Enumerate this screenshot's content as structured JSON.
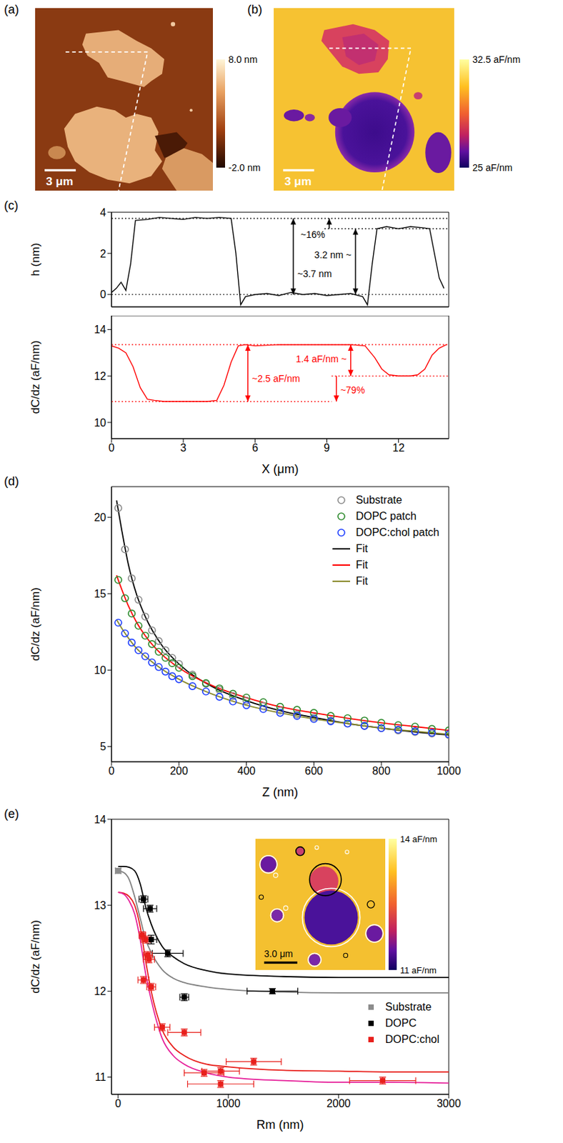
{
  "chart_data": [
    {
      "title": "(a)",
      "type": "image",
      "scale_bar": "3 μm",
      "colorbar": {
        "range": [
          -2.0,
          8.0
        ],
        "ticks": [
          {
            "value": 8.0,
            "label": "8.0 nm"
          },
          {
            "value": -2.0,
            "label": "-2.0 nm"
          }
        ]
      }
    },
    {
      "title": "(b)",
      "type": "image",
      "scale_bar": "3 μm",
      "colorbar": {
        "range": [
          25,
          32.5
        ],
        "ticks": [
          {
            "value": 32.5,
            "label": "32.5 aF/nm"
          },
          {
            "value": 25,
            "label": "25 aF/nm"
          }
        ]
      }
    },
    {
      "title": "(c)",
      "type": "line",
      "y_label": "h (nm)",
      "tick_labels": "y",
      "color": "#000000",
      "x": [
        0,
        0.2,
        0.4,
        0.6,
        0.8,
        1.0,
        1.5,
        2,
        2.5,
        3,
        3.5,
        4,
        4.5,
        5.0,
        5.2,
        5.4,
        5.6,
        6,
        6.5,
        7,
        7.5,
        8,
        8.5,
        9,
        9.5,
        10,
        10.5,
        10.7,
        10.9,
        11.1,
        11.5,
        12,
        12.5,
        13,
        13.3,
        13.5,
        13.7,
        13.9
      ],
      "values": [
        0.1,
        0.3,
        0.6,
        0.2,
        1.5,
        3.6,
        3.65,
        3.75,
        3.7,
        3.65,
        3.75,
        3.7,
        3.75,
        3.7,
        2.0,
        -0.5,
        -0.1,
        0,
        0.05,
        -0.05,
        0.1,
        0,
        0.05,
        -0.05,
        0,
        0.05,
        -0.1,
        -0.5,
        1.5,
        3.2,
        3.3,
        3.2,
        3.3,
        3.25,
        3.2,
        2.0,
        0.8,
        0.3
      ],
      "xlim": [
        0,
        14.1
      ],
      "xticks": [
        0,
        3,
        6,
        9,
        12
      ],
      "ylim": [
        -0.6,
        4
      ],
      "yticks": [
        0,
        2,
        4
      ],
      "reference_lines": [
        {
          "y": 3.7,
          "x": [
            0,
            14.1
          ]
        },
        {
          "y": 3.2,
          "x": [
            8.9,
            14.1
          ]
        },
        {
          "y": 0,
          "x": [
            0,
            14.1
          ]
        }
      ],
      "annotations": [
        {
          "text": "~3.7 nm",
          "x": 7.6,
          "from": 0,
          "to": 3.7,
          "marker": "double_arrow"
        },
        {
          "text": "~16%",
          "x": 9.1,
          "from": 3.2,
          "to": 3.7,
          "marker": "arrow"
        },
        {
          "text": "3.2 nm ~",
          "x": 10.2,
          "from": 0,
          "to": 3.2,
          "marker": "double_arrow"
        }
      ]
    },
    {
      "type": "line",
      "x_label": "X (μm)",
      "y_label": "dC/dz (aF/nm)",
      "color": "#ff0000",
      "x": [
        0,
        0.3,
        0.6,
        0.9,
        1.2,
        1.5,
        1.8,
        2.2,
        3,
        4,
        4.4,
        4.7,
        5.0,
        5.3,
        5.6,
        6,
        7,
        8,
        9,
        10,
        10.6,
        11,
        11.3,
        11.6,
        12,
        12.5,
        12.8,
        13.1,
        13.4,
        13.7,
        14
      ],
      "values": [
        13.3,
        13.2,
        13.0,
        12.4,
        11.5,
        11.0,
        10.95,
        10.9,
        10.9,
        10.9,
        10.95,
        11.6,
        12.6,
        13.3,
        13.35,
        13.3,
        13.35,
        13.35,
        13.35,
        13.35,
        13.3,
        12.8,
        12.3,
        12.05,
        12.0,
        12.0,
        12.05,
        12.3,
        12.9,
        13.2,
        13.35
      ],
      "xlim": [
        0,
        14.1
      ],
      "xticks": [
        0,
        3,
        6,
        9,
        12
      ],
      "ylim": [
        9.3,
        14.6
      ],
      "yticks": [
        10,
        12,
        14
      ],
      "reference_lines": [
        {
          "y": 13.35,
          "x": [
            0,
            14.1
          ]
        },
        {
          "y": 10.9,
          "x": [
            0,
            9.2
          ]
        },
        {
          "y": 12.0,
          "x": [
            9.2,
            14.1
          ]
        }
      ],
      "annotations": [
        {
          "text": "~2.5 aF/nm",
          "x": 5.7,
          "from": 10.9,
          "to": 13.35,
          "marker": "double_arrow"
        },
        {
          "text": "1.4 aF/nm ~",
          "x": 10.0,
          "from": 12.0,
          "to": 13.35,
          "marker": "double_arrow"
        },
        {
          "text": "~79%",
          "x": 9.4,
          "from": 12.0,
          "to": 10.9,
          "marker": "arrow"
        }
      ]
    },
    {
      "title": "(d)",
      "type": "scatter",
      "x_label": "Z (nm)",
      "y_label": "dC/dz (aF/nm)",
      "xlim": [
        0,
        1000
      ],
      "xticks": [
        0,
        200,
        400,
        600,
        800,
        1000
      ],
      "ylim": [
        4,
        22
      ],
      "yticks": [
        5,
        10,
        15,
        20
      ],
      "legend": "upper right",
      "series": [
        {
          "name": "Substrate",
          "type": "scatter",
          "marker": "open_circle",
          "color": "#8c8c8c",
          "x": [
            20,
            40,
            60,
            80,
            100,
            120,
            140,
            160,
            180,
            200,
            240,
            280,
            320,
            360,
            400,
            450,
            500,
            550,
            600,
            650,
            700,
            750,
            800,
            850,
            900,
            950,
            1000
          ],
          "values": [
            20.6,
            17.9,
            16.0,
            14.6,
            13.5,
            12.6,
            11.9,
            11.3,
            10.8,
            10.4,
            9.7,
            9.1,
            8.7,
            8.3,
            8.0,
            7.65,
            7.35,
            7.1,
            6.9,
            6.7,
            6.5,
            6.35,
            6.2,
            6.05,
            5.95,
            5.85,
            5.75
          ]
        },
        {
          "name": "DOPC patch",
          "type": "scatter",
          "marker": "open_circle",
          "color": "#2e8b2e",
          "x": [
            20,
            40,
            60,
            80,
            100,
            120,
            140,
            160,
            180,
            200,
            240,
            280,
            320,
            360,
            400,
            450,
            500,
            550,
            600,
            650,
            700,
            750,
            800,
            850,
            900,
            950,
            1000
          ],
          "values": [
            15.9,
            14.7,
            13.7,
            12.9,
            12.25,
            11.7,
            11.2,
            10.8,
            10.45,
            10.15,
            9.6,
            9.15,
            8.8,
            8.45,
            8.2,
            7.9,
            7.6,
            7.4,
            7.2,
            7.0,
            6.85,
            6.7,
            6.55,
            6.4,
            6.3,
            6.15,
            6.05
          ]
        },
        {
          "name": "DOPC:chol patch",
          "type": "scatter",
          "marker": "open_circle",
          "color": "#1f3fff",
          "x": [
            20,
            40,
            60,
            80,
            100,
            120,
            140,
            160,
            180,
            200,
            240,
            280,
            320,
            360,
            400,
            450,
            500,
            550,
            600,
            650,
            700,
            750,
            800,
            850,
            900,
            950,
            1000
          ],
          "values": [
            13.1,
            12.4,
            11.8,
            11.3,
            10.9,
            10.5,
            10.2,
            9.9,
            9.6,
            9.4,
            8.95,
            8.6,
            8.25,
            7.95,
            7.7,
            7.45,
            7.2,
            7.0,
            6.8,
            6.65,
            6.5,
            6.35,
            6.2,
            6.1,
            6.0,
            5.9,
            5.8
          ]
        },
        {
          "name": "Fit",
          "type": "line",
          "color": "#000000",
          "x": [
            15,
            30,
            50,
            75,
            100,
            150,
            200,
            300,
            400,
            500,
            600,
            700,
            800,
            900,
            1000
          ],
          "values": [
            21.1,
            19.2,
            16.9,
            14.9,
            13.5,
            11.6,
            10.4,
            8.9,
            8.0,
            7.35,
            6.9,
            6.5,
            6.2,
            5.95,
            5.75
          ]
        },
        {
          "name": "Fit",
          "type": "line",
          "color": "#ff0000",
          "x": [
            15,
            30,
            50,
            75,
            100,
            150,
            200,
            300,
            400,
            500,
            600,
            700,
            800,
            900,
            1000
          ],
          "values": [
            16.2,
            15.3,
            14.2,
            13.1,
            12.25,
            11.0,
            10.15,
            8.97,
            8.2,
            7.6,
            7.2,
            6.85,
            6.55,
            6.3,
            6.05
          ]
        },
        {
          "name": "Fit",
          "type": "line",
          "color": "#8b8b2e",
          "x": [
            15,
            30,
            50,
            75,
            100,
            150,
            200,
            300,
            400,
            500,
            600,
            700,
            800,
            900,
            1000
          ],
          "values": [
            13.3,
            12.75,
            12.1,
            11.4,
            10.9,
            10.05,
            9.4,
            8.42,
            7.7,
            7.2,
            6.8,
            6.5,
            6.2,
            6.0,
            5.8
          ]
        }
      ]
    },
    {
      "title": "(e)",
      "type": "scatter",
      "x_label": "Rm (nm)",
      "y_label": "dC/dz (aF/nm)",
      "xlim": [
        -60,
        3000
      ],
      "xticks": [
        0,
        1000,
        2000,
        3000
      ],
      "ylim": [
        10.8,
        14
      ],
      "yticks": [
        11,
        12,
        13,
        14
      ],
      "legend": "lower right",
      "series": [
        {
          "type": "line",
          "color": "#000000",
          "x": [
            0,
            50,
            100,
            150,
            200,
            250,
            300,
            400,
            500,
            600,
            800,
            1000,
            1500,
            2000,
            2500,
            3000
          ],
          "values": [
            13.45,
            13.45,
            13.44,
            13.4,
            13.25,
            12.98,
            12.78,
            12.52,
            12.4,
            12.32,
            12.24,
            12.2,
            12.17,
            12.16,
            12.16,
            12.16
          ]
        },
        {
          "type": "line",
          "color": "#808080",
          "x": [
            0,
            50,
            100,
            150,
            200,
            250,
            300,
            400,
            500,
            600,
            800,
            1000,
            1500,
            2000,
            2500,
            3000
          ],
          "values": [
            13.4,
            13.38,
            13.3,
            13.1,
            12.85,
            12.6,
            12.45,
            12.25,
            12.15,
            12.1,
            12.05,
            12.02,
            11.99,
            11.98,
            11.98,
            11.98
          ]
        },
        {
          "type": "line",
          "color": "#e8201c",
          "x": [
            0,
            50,
            100,
            150,
            200,
            250,
            300,
            400,
            500,
            600,
            800,
            1000,
            1500,
            2000,
            2500,
            3000
          ],
          "values": [
            13.15,
            13.14,
            13.1,
            13.0,
            12.75,
            12.35,
            12.0,
            11.55,
            11.35,
            11.25,
            11.15,
            11.12,
            11.08,
            11.07,
            11.06,
            11.06
          ]
        },
        {
          "type": "line",
          "color": "#e6209a",
          "x": [
            0,
            50,
            100,
            150,
            200,
            250,
            300,
            400,
            500,
            600,
            800,
            1000,
            1500,
            2000,
            2500,
            3000
          ],
          "values": [
            13.15,
            13.13,
            13.05,
            12.9,
            12.6,
            12.2,
            11.9,
            11.45,
            11.25,
            11.15,
            11.05,
            11.0,
            10.96,
            10.94,
            10.94,
            10.93
          ]
        },
        {
          "name": "Substrate",
          "type": "scatter",
          "marker": "square",
          "color": "#8c8c8c",
          "x": [
            0
          ],
          "values": [
            13.4
          ],
          "x_err": [
            25
          ],
          "y_err": [
            0.03
          ]
        },
        {
          "name": "DOPC",
          "type": "scatter",
          "marker": "square",
          "color": "#000000",
          "x": [
            230,
            290,
            300,
            450,
            600,
            1400
          ],
          "values": [
            13.07,
            12.96,
            12.6,
            12.44,
            11.93,
            12.0
          ],
          "x_err": [
            40,
            60,
            50,
            140,
            40,
            230
          ],
          "y_err": [
            0.04,
            0.04,
            0.05,
            0.04,
            0.04,
            0.03
          ]
        },
        {
          "name": "DOPC:chol",
          "type": "scatter",
          "marker": "square",
          "color": "#e8201c",
          "x": [
            220,
            250,
            270,
            280,
            230,
            300,
            400,
            600,
            780,
            930,
            930,
            1230,
            2400
          ],
          "values": [
            12.65,
            12.6,
            12.42,
            12.37,
            12.13,
            12.05,
            11.58,
            11.52,
            11.05,
            11.07,
            10.92,
            11.18,
            10.96
          ],
          "x_err": [
            30,
            40,
            40,
            50,
            50,
            40,
            70,
            150,
            180,
            170,
            300,
            250,
            300
          ],
          "y_err": [
            0.04,
            0.04,
            0.04,
            0.04,
            0.04,
            0.04,
            0.04,
            0.04,
            0.04,
            0.04,
            0.04,
            0.04,
            0.04
          ]
        }
      ],
      "inset": {
        "type": "image",
        "scale_bar": "3.0 μm",
        "colorbar": {
          "range": [
            11,
            14
          ],
          "ticks": [
            {
              "value": 14,
              "label": "14 aF/nm"
            },
            {
              "value": 11,
              "label": "11 aF/nm"
            }
          ]
        }
      }
    }
  ]
}
